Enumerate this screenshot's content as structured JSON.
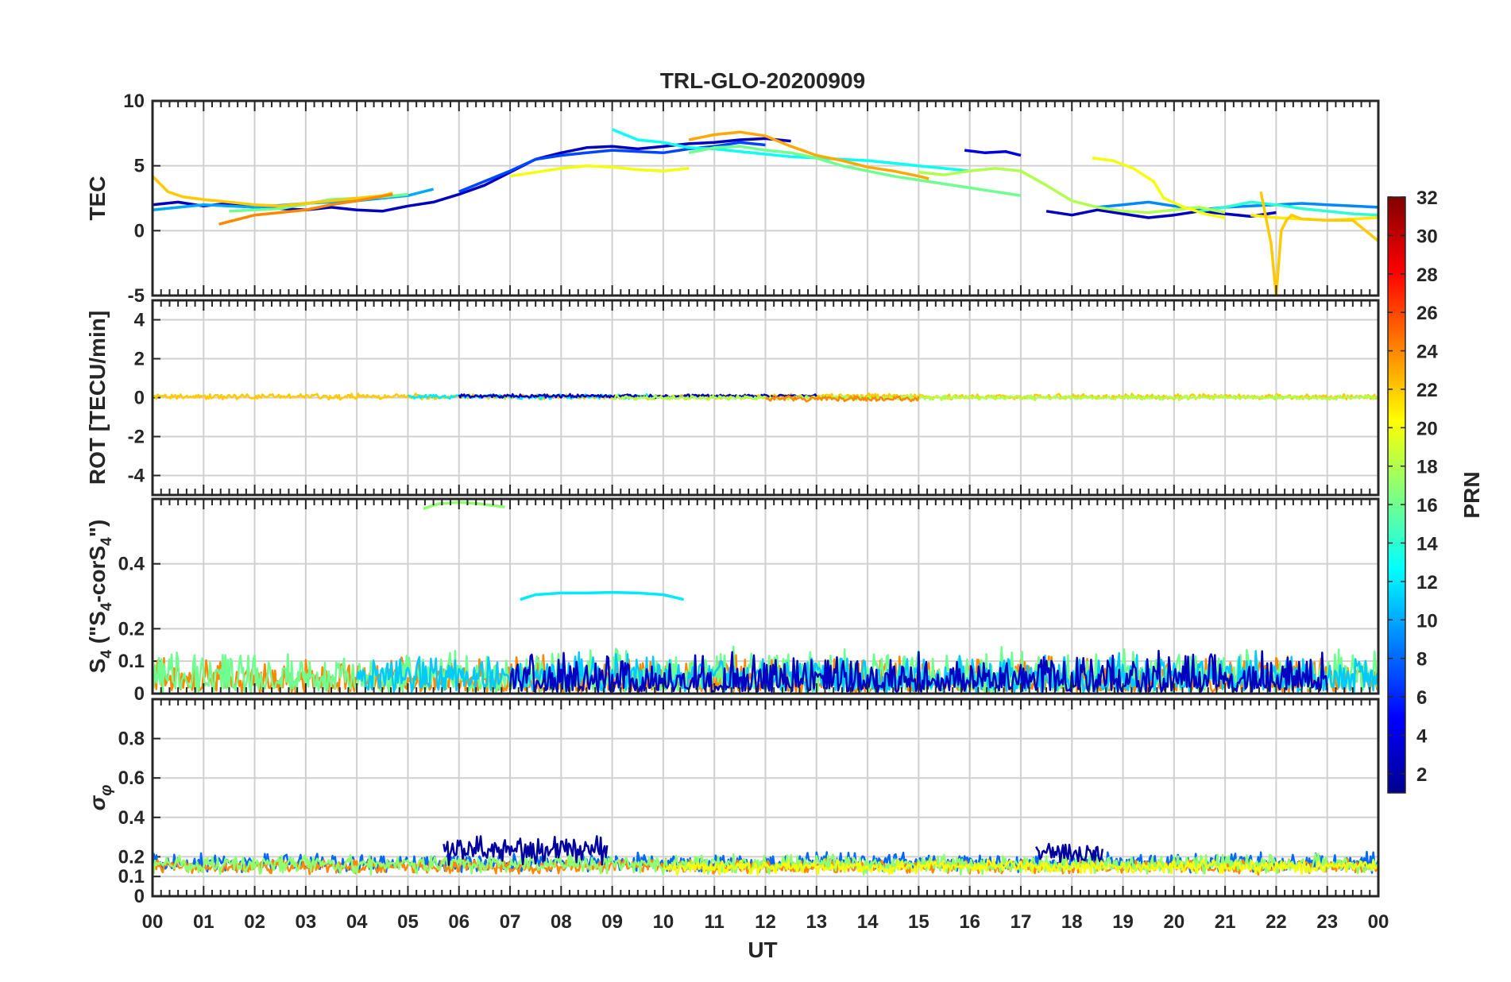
{
  "chart_data": {
    "type": "line",
    "title": "TRL-GLO-20200909",
    "xlabel": "UT",
    "x_tick_labels": [
      "00",
      "01",
      "02",
      "03",
      "04",
      "05",
      "06",
      "07",
      "08",
      "09",
      "10",
      "11",
      "12",
      "13",
      "14",
      "15",
      "16",
      "17",
      "18",
      "19",
      "20",
      "21",
      "22",
      "23",
      "00"
    ],
    "xlim": [
      0,
      24
    ],
    "colorbar": {
      "label": "PRN",
      "range": [
        1,
        32
      ],
      "tick_labels": [
        "2",
        "4",
        "6",
        "8",
        "10",
        "12",
        "14",
        "16",
        "18",
        "20",
        "22",
        "24",
        "26",
        "28",
        "30",
        "32"
      ],
      "tick_values": [
        2,
        4,
        6,
        8,
        10,
        12,
        14,
        16,
        18,
        20,
        22,
        24,
        26,
        28,
        30,
        32
      ],
      "colormap": "jet"
    },
    "panels": [
      {
        "id": "tec",
        "ylabel": "TEC",
        "ylim": [
          -5,
          10
        ],
        "yticks": [
          -5,
          0,
          5,
          10
        ],
        "ytick_labels": [
          "-5",
          "0",
          "5",
          "10"
        ],
        "series": [
          {
            "prn": 3,
            "x": [
              0.0,
              0.5,
              1.0,
              1.5,
              2.0,
              2.5,
              3.0,
              3.5,
              4.0,
              4.5,
              5.0,
              5.5,
              6.0,
              6.5,
              7.0,
              7.5,
              8.0,
              8.5,
              9.0,
              9.5,
              10.0,
              10.5,
              11.0,
              11.5,
              12.0,
              12.5
            ],
            "y": [
              2.0,
              2.2,
              1.9,
              2.1,
              1.8,
              1.7,
              1.6,
              1.8,
              1.6,
              1.5,
              1.9,
              2.2,
              2.8,
              3.5,
              4.5,
              5.5,
              6.0,
              6.4,
              6.5,
              6.3,
              6.5,
              6.7,
              6.8,
              7.0,
              7.1,
              6.9
            ]
          },
          {
            "prn": 4,
            "x": [
              15.9,
              16.3,
              16.7,
              17.0
            ],
            "y": [
              6.2,
              6.0,
              6.1,
              5.8
            ]
          },
          {
            "prn": 3,
            "x": [
              17.5,
              18.0,
              18.5,
              19.0,
              19.5,
              20.0,
              20.5,
              21.0,
              21.5,
              22.0
            ],
            "y": [
              1.5,
              1.2,
              1.6,
              1.3,
              1.0,
              1.2,
              1.5,
              1.3,
              1.1,
              1.4
            ]
          },
          {
            "prn": 7,
            "x": [
              6.0,
              6.5,
              7.0,
              7.5,
              8.0,
              8.5,
              9.0,
              9.5,
              10.0,
              10.5,
              11.0,
              11.5,
              12.0
            ],
            "y": [
              3.0,
              3.8,
              4.6,
              5.5,
              5.8,
              6.0,
              6.2,
              6.1,
              6.0,
              6.3,
              6.5,
              6.8,
              6.6
            ]
          },
          {
            "prn": 10,
            "x": [
              0.0,
              1.0,
              2.0,
              3.0,
              4.0,
              5.0,
              5.5
            ],
            "y": [
              1.6,
              2.0,
              1.8,
              2.1,
              2.3,
              2.7,
              3.2
            ]
          },
          {
            "prn": 9,
            "x": [
              18.5,
              19.0,
              19.5,
              20.0,
              20.5,
              21.0,
              21.5,
              22.0,
              22.5,
              23.0,
              23.5,
              24.0
            ],
            "y": [
              1.8,
              2.0,
              2.2,
              1.9,
              1.6,
              1.8,
              1.9,
              2.0,
              2.1,
              2.0,
              1.9,
              1.8
            ]
          },
          {
            "prn": 13,
            "x": [
              9.0,
              9.5,
              10.0,
              10.5,
              11.0,
              11.5,
              12.0,
              12.5,
              13.0,
              13.5,
              14.0,
              14.5,
              15.0,
              15.5,
              16.0
            ],
            "y": [
              7.8,
              7.0,
              6.8,
              6.4,
              6.3,
              6.1,
              5.9,
              5.7,
              5.6,
              5.5,
              5.4,
              5.2,
              5.0,
              4.8,
              4.6
            ]
          },
          {
            "prn": 14,
            "x": [
              20.5,
              21.0,
              21.5,
              22.0,
              22.5,
              23.0,
              23.5,
              24.0
            ],
            "y": [
              1.5,
              1.8,
              2.2,
              2.0,
              1.7,
              1.5,
              1.3,
              1.2
            ]
          },
          {
            "prn": 16,
            "x": [
              1.5,
              2.5,
              3.5,
              4.5,
              5.0
            ],
            "y": [
              1.5,
              1.7,
              2.4,
              2.6,
              2.8
            ]
          },
          {
            "prn": 16,
            "x": [
              10.5,
              11.0,
              11.5,
              12.0,
              12.5,
              13.0,
              13.5,
              14.0,
              14.5,
              15.0,
              15.5,
              16.0,
              16.5,
              17.0
            ],
            "y": [
              6.0,
              6.4,
              6.5,
              6.2,
              6.0,
              5.6,
              5.0,
              4.6,
              4.2,
              3.9,
              3.6,
              3.3,
              3.0,
              2.7
            ]
          },
          {
            "prn": 18,
            "x": [
              15.0,
              15.5,
              16.0,
              16.5,
              17.0,
              17.5,
              18.0,
              18.5,
              19.0,
              19.5,
              20.0,
              20.5,
              21.0
            ],
            "y": [
              4.5,
              4.3,
              4.6,
              4.8,
              4.6,
              3.5,
              2.3,
              1.8,
              1.5,
              1.4,
              1.6,
              1.8,
              1.4
            ]
          },
          {
            "prn": 20,
            "x": [
              18.4,
              18.8,
              19.2,
              19.6,
              19.8,
              20.2,
              20.6,
              21.0
            ],
            "y": [
              5.6,
              5.4,
              4.8,
              3.8,
              2.5,
              1.8,
              1.3,
              1.0
            ]
          },
          {
            "prn": 20,
            "x": [
              7.0,
              7.5,
              8.0,
              8.5,
              9.0,
              9.5,
              10.0,
              10.5
            ],
            "y": [
              4.2,
              4.5,
              4.8,
              5.0,
              4.9,
              4.7,
              4.6,
              4.8
            ]
          },
          {
            "prn": 21,
            "x": [
              21.5,
              22.0,
              22.5,
              23.0,
              23.5,
              24.0
            ],
            "y": [
              1.2,
              1.0,
              0.9,
              0.8,
              0.9,
              1.0
            ]
          },
          {
            "prn": 22,
            "x": [
              0.0,
              0.3,
              0.6,
              1.0,
              1.5,
              2.0,
              2.5,
              3.0,
              3.5,
              4.0,
              4.5,
              4.7
            ],
            "y": [
              4.2,
              3.0,
              2.6,
              2.4,
              2.2,
              2.0,
              1.9,
              2.1,
              2.3,
              2.5,
              2.7,
              2.9
            ]
          },
          {
            "prn": 22,
            "x": [
              21.7,
              21.9,
              22.0,
              22.1,
              22.2,
              22.3,
              22.5,
              23.0,
              23.5,
              24.0
            ],
            "y": [
              3.0,
              -1.0,
              -5.0,
              0.0,
              0.8,
              1.2,
              0.9,
              0.8,
              0.8,
              -0.8
            ]
          },
          {
            "prn": 23,
            "x": [
              10.5,
              11.0,
              11.5,
              12.0,
              12.5,
              13.0,
              13.5,
              14.0,
              14.5,
              15.0,
              15.2
            ],
            "y": [
              7.0,
              7.4,
              7.6,
              7.3,
              6.5,
              5.8,
              5.4,
              4.9,
              4.6,
              4.2,
              4.0
            ]
          },
          {
            "prn": 24,
            "x": [
              1.3,
              2.0,
              2.5,
              3.0,
              3.5,
              4.0,
              4.7
            ],
            "y": [
              0.5,
              1.2,
              1.4,
              1.6,
              2.0,
              2.3,
              2.8
            ]
          }
        ]
      },
      {
        "id": "rot",
        "ylabel": "ROT [TECU/min]",
        "ylim": [
          -5,
          5
        ],
        "yticks": [
          -4,
          -2,
          0,
          2,
          4
        ],
        "ytick_labels": [
          "-4",
          "-2",
          "0",
          "2",
          "4"
        ],
        "series": [
          {
            "prn": 22,
            "x": [
              0,
              24
            ],
            "y": [
              0.05,
              0.05
            ],
            "noise": 0.12
          },
          {
            "prn": 12,
            "x": [
              5,
              10
            ],
            "y": [
              0.05,
              0.05
            ],
            "noise": 0.1
          },
          {
            "prn": 3,
            "x": [
              6,
              13
            ],
            "y": [
              0.08,
              0.08
            ],
            "noise": 0.08
          },
          {
            "prn": 18,
            "x": [
              9,
              24
            ],
            "y": [
              0.0,
              0.0
            ],
            "noise": 0.1
          },
          {
            "prn": 24,
            "x": [
              12,
              15
            ],
            "y": [
              -0.05,
              -0.05
            ],
            "noise": 0.12
          }
        ]
      },
      {
        "id": "s4",
        "ylabel": "S4 (\"S4-corS4\")",
        "ylim": [
          0,
          0.6
        ],
        "yticks": [
          0,
          0.1,
          0.2,
          0.4
        ],
        "ytick_labels": [
          "0",
          "0.1",
          "0.2",
          "0.4"
        ],
        "series": [
          {
            "prn": 17,
            "x": [
              5.3,
              5.6,
              6.0,
              6.4,
              6.9
            ],
            "y": [
              0.57,
              0.585,
              0.59,
              0.585,
              0.575
            ]
          },
          {
            "prn": 12,
            "x": [
              7.2,
              7.5,
              8.0,
              8.5,
              9.0,
              9.5,
              10.0,
              10.4
            ],
            "y": [
              0.29,
              0.305,
              0.31,
              0.31,
              0.312,
              0.31,
              0.305,
              0.29
            ]
          },
          {
            "prn": 24,
            "x": [
              0,
              24
            ],
            "y": [
              0.04,
              0.04
            ],
            "noise": 0.06
          },
          {
            "prn": 16,
            "x": [
              0,
              24
            ],
            "y": [
              0.05,
              0.05
            ],
            "noise": 0.07
          },
          {
            "prn": 11,
            "x": [
              4,
              24
            ],
            "y": [
              0.05,
              0.05
            ],
            "noise": 0.06
          },
          {
            "prn": 3,
            "x": [
              7,
              23
            ],
            "y": [
              0.04,
              0.04
            ],
            "noise": 0.07
          }
        ]
      },
      {
        "id": "sigma",
        "ylabel": "σφ",
        "ylim": [
          0,
          1
        ],
        "yticks": [
          0,
          0.1,
          0.2,
          0.4,
          0.6,
          0.8
        ],
        "ytick_labels": [
          "0",
          "0.1",
          "0.2",
          "0.4",
          "0.6",
          "0.8"
        ],
        "series": [
          {
            "prn": 8,
            "x": [
              0,
              24
            ],
            "y": [
              0.17,
              0.17
            ],
            "noise": 0.04
          },
          {
            "prn": 24,
            "x": [
              0,
              24
            ],
            "y": [
              0.15,
              0.15
            ],
            "noise": 0.03
          },
          {
            "prn": 17,
            "x": [
              0,
              24
            ],
            "y": [
              0.16,
              0.16
            ],
            "noise": 0.04
          },
          {
            "prn": 2,
            "x": [
              5.7,
              8.9
            ],
            "y": [
              0.23,
              0.23
            ],
            "noise": 0.06
          },
          {
            "prn": 2,
            "x": [
              17.3,
              18.6
            ],
            "y": [
              0.22,
              0.22
            ],
            "noise": 0.05
          },
          {
            "prn": 20,
            "x": [
              10,
              24
            ],
            "y": [
              0.15,
              0.15
            ],
            "noise": 0.03
          }
        ]
      }
    ]
  }
}
